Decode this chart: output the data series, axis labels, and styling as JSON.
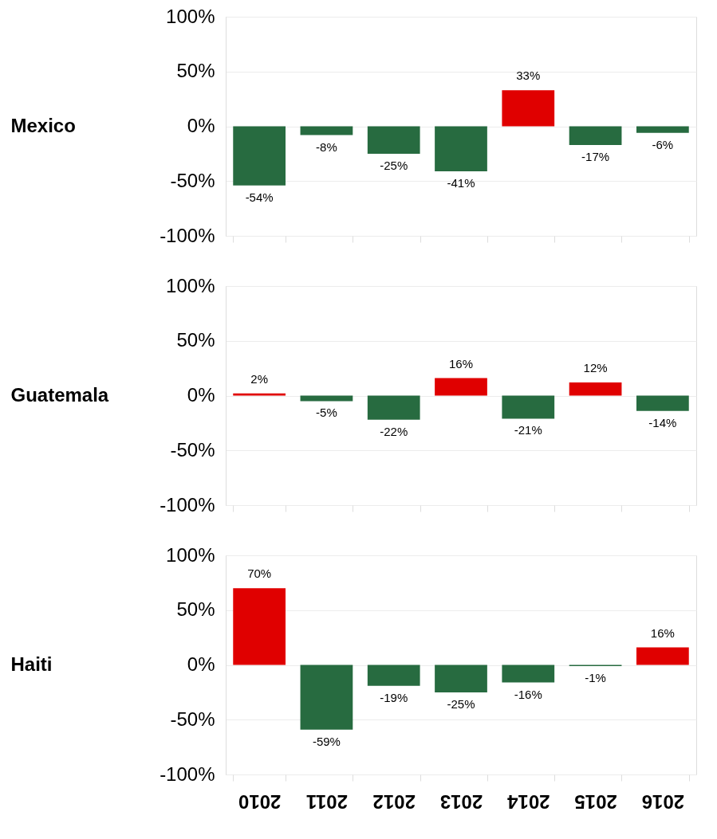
{
  "chart_data": [
    {
      "type": "bar",
      "ylabel": "Mexico",
      "categories": [
        "2010",
        "2011",
        "2012",
        "2013",
        "2014",
        "2015",
        "2016"
      ],
      "values": [
        -54,
        -8,
        -25,
        -41,
        33,
        -17,
        -6
      ],
      "value_labels": [
        "-54%",
        "-8%",
        "-25%",
        "-41%",
        "33%",
        "-17%",
        "-6%"
      ],
      "colors": [
        "#276b40",
        "#276b40",
        "#276b40",
        "#276b40",
        "#e00000",
        "#276b40",
        "#276b40"
      ],
      "ylim": [
        -100,
        100
      ],
      "yticks": [
        {
          "value": -100,
          "label": "-100%"
        },
        {
          "value": -50,
          "label": "-50%"
        },
        {
          "value": 0,
          "label": "0%"
        },
        {
          "value": 50,
          "label": "50%"
        },
        {
          "value": 100,
          "label": "100%"
        }
      ],
      "grid": "y",
      "tick_labels": "y"
    },
    {
      "type": "bar",
      "ylabel": "Guatemala",
      "categories": [
        "2010",
        "2011",
        "2012",
        "2013",
        "2014",
        "2015",
        "2016"
      ],
      "values": [
        2,
        -5,
        -22,
        16,
        -21,
        12,
        -14
      ],
      "value_labels": [
        "2%",
        "-5%",
        "-22%",
        "16%",
        "-21%",
        "12%",
        "-14%"
      ],
      "colors": [
        "#e00000",
        "#276b40",
        "#276b40",
        "#e00000",
        "#276b40",
        "#e00000",
        "#276b40"
      ],
      "ylim": [
        -100,
        100
      ],
      "yticks": [
        {
          "value": -100,
          "label": "-100%"
        },
        {
          "value": -50,
          "label": "-50%"
        },
        {
          "value": 0,
          "label": "0%"
        },
        {
          "value": 50,
          "label": "50%"
        },
        {
          "value": 100,
          "label": "100%"
        }
      ],
      "grid": "y",
      "tick_labels": "y"
    },
    {
      "type": "bar",
      "ylabel": "Haiti",
      "categories": [
        "2010",
        "2011",
        "2012",
        "2013",
        "2014",
        "2015",
        "2016"
      ],
      "values": [
        70,
        -59,
        -19,
        -25,
        -16,
        -1,
        16
      ],
      "value_labels": [
        "70%",
        "-59%",
        "-19%",
        "-25%",
        "-16%",
        "-1%",
        "16%"
      ],
      "colors": [
        "#e00000",
        "#276b40",
        "#276b40",
        "#276b40",
        "#276b40",
        "#276b40",
        "#e00000"
      ],
      "ylim": [
        -100,
        100
      ],
      "yticks": [
        {
          "value": -100,
          "label": "-100%"
        },
        {
          "value": -50,
          "label": "-50%"
        },
        {
          "value": 0,
          "label": "0%"
        },
        {
          "value": 50,
          "label": "50%"
        },
        {
          "value": 100,
          "label": "100%"
        }
      ],
      "grid": "y"
    }
  ]
}
